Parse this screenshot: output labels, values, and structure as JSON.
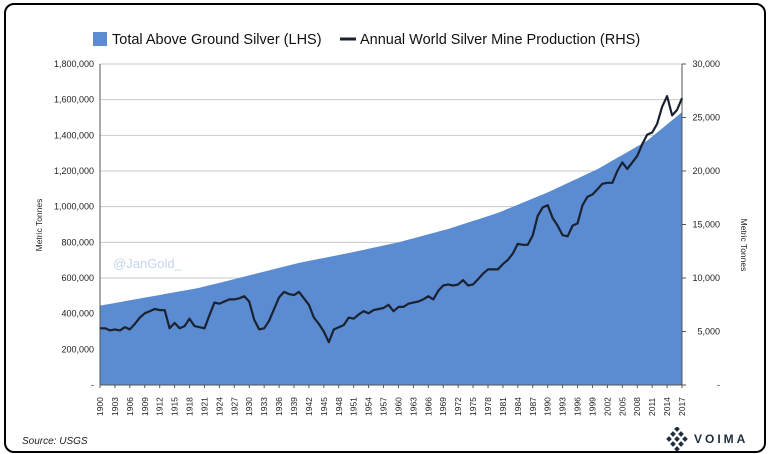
{
  "chart_data": {
    "type": "area+line",
    "legend": {
      "position": "top",
      "area_label": "Total Above Ground Silver (LHS)",
      "line_label": "Annual World Silver Mine Production (RHS)"
    },
    "left_axis": {
      "label": "Metric Tonnes",
      "min": 0,
      "max": 1800000,
      "ticks": [
        "-",
        "200,000",
        "400,000",
        "600,000",
        "800,000",
        "1,000,000",
        "1,200,000",
        "1,400,000",
        "1,600,000",
        "1,800,000"
      ]
    },
    "right_axis": {
      "label": "Metric Tonnes",
      "min": 0,
      "max": 30000,
      "ticks": [
        "-",
        "5,000",
        "10,000",
        "15,000",
        "20,000",
        "25,000",
        "30,000"
      ]
    },
    "x_axis": {
      "min": 1900,
      "max": 2017,
      "ticks": [
        "1900",
        "1903",
        "1906",
        "1909",
        "1912",
        "1915",
        "1918",
        "1921",
        "1924",
        "1927",
        "1930",
        "1933",
        "1936",
        "1939",
        "1942",
        "1945",
        "1948",
        "1951",
        "1954",
        "1957",
        "1960",
        "1963",
        "1966",
        "1969",
        "1972",
        "1975",
        "1978",
        "1981",
        "1984",
        "1987",
        "1990",
        "1993",
        "1996",
        "1999",
        "2002",
        "2005",
        "2008",
        "2011",
        "2014",
        "2017"
      ]
    },
    "series": [
      {
        "name": "Total Above Ground Silver (LHS)",
        "type": "area",
        "axis": "left",
        "color": "#5b8bd0",
        "points": [
          [
            1900,
            445000
          ],
          [
            1910,
            495000
          ],
          [
            1920,
            545000
          ],
          [
            1930,
            615000
          ],
          [
            1940,
            685000
          ],
          [
            1950,
            740000
          ],
          [
            1960,
            800000
          ],
          [
            1970,
            875000
          ],
          [
            1980,
            965000
          ],
          [
            1990,
            1080000
          ],
          [
            2000,
            1210000
          ],
          [
            2010,
            1370000
          ],
          [
            2017,
            1530000
          ]
        ]
      },
      {
        "name": "Annual World Silver Mine Production (RHS)",
        "type": "line",
        "axis": "right",
        "color": "#1a2231",
        "points": [
          [
            1900,
            5300
          ],
          [
            1901,
            5300
          ],
          [
            1902,
            5100
          ],
          [
            1903,
            5200
          ],
          [
            1904,
            5100
          ],
          [
            1905,
            5400
          ],
          [
            1906,
            5200
          ],
          [
            1907,
            5700
          ],
          [
            1908,
            6300
          ],
          [
            1909,
            6700
          ],
          [
            1910,
            6900
          ],
          [
            1911,
            7100
          ],
          [
            1912,
            7000
          ],
          [
            1913,
            7000
          ],
          [
            1914,
            5300
          ],
          [
            1915,
            5800
          ],
          [
            1916,
            5300
          ],
          [
            1917,
            5500
          ],
          [
            1918,
            6200
          ],
          [
            1919,
            5500
          ],
          [
            1920,
            5400
          ],
          [
            1921,
            5300
          ],
          [
            1922,
            6500
          ],
          [
            1923,
            7700
          ],
          [
            1924,
            7600
          ],
          [
            1925,
            7800
          ],
          [
            1926,
            8000
          ],
          [
            1927,
            8000
          ],
          [
            1928,
            8100
          ],
          [
            1929,
            8300
          ],
          [
            1930,
            7800
          ],
          [
            1931,
            6100
          ],
          [
            1932,
            5200
          ],
          [
            1933,
            5300
          ],
          [
            1934,
            6000
          ],
          [
            1935,
            7100
          ],
          [
            1936,
            8200
          ],
          [
            1937,
            8700
          ],
          [
            1938,
            8500
          ],
          [
            1939,
            8400
          ],
          [
            1940,
            8700
          ],
          [
            1941,
            8100
          ],
          [
            1942,
            7500
          ],
          [
            1943,
            6300
          ],
          [
            1944,
            5700
          ],
          [
            1945,
            5000
          ],
          [
            1946,
            4000
          ],
          [
            1947,
            5200
          ],
          [
            1948,
            5400
          ],
          [
            1949,
            5600
          ],
          [
            1950,
            6300
          ],
          [
            1951,
            6200
          ],
          [
            1952,
            6600
          ],
          [
            1953,
            6900
          ],
          [
            1954,
            6700
          ],
          [
            1955,
            7000
          ],
          [
            1956,
            7100
          ],
          [
            1957,
            7200
          ],
          [
            1958,
            7500
          ],
          [
            1959,
            6900
          ],
          [
            1960,
            7300
          ],
          [
            1961,
            7300
          ],
          [
            1962,
            7600
          ],
          [
            1963,
            7700
          ],
          [
            1964,
            7800
          ],
          [
            1965,
            8000
          ],
          [
            1966,
            8300
          ],
          [
            1967,
            8000
          ],
          [
            1968,
            8800
          ],
          [
            1969,
            9300
          ],
          [
            1970,
            9400
          ],
          [
            1971,
            9300
          ],
          [
            1972,
            9400
          ],
          [
            1973,
            9800
          ],
          [
            1974,
            9300
          ],
          [
            1975,
            9400
          ],
          [
            1976,
            9900
          ],
          [
            1977,
            10400
          ],
          [
            1978,
            10800
          ],
          [
            1979,
            10800
          ],
          [
            1980,
            10800
          ],
          [
            1981,
            11300
          ],
          [
            1982,
            11700
          ],
          [
            1983,
            12300
          ],
          [
            1984,
            13200
          ],
          [
            1985,
            13100
          ],
          [
            1986,
            13100
          ],
          [
            1987,
            14000
          ],
          [
            1988,
            15800
          ],
          [
            1989,
            16600
          ],
          [
            1990,
            16800
          ],
          [
            1991,
            15600
          ],
          [
            1992,
            14900
          ],
          [
            1993,
            14000
          ],
          [
            1994,
            13900
          ],
          [
            1995,
            14900
          ],
          [
            1996,
            15100
          ],
          [
            1997,
            16800
          ],
          [
            1998,
            17600
          ],
          [
            1999,
            17800
          ],
          [
            2000,
            18300
          ],
          [
            2001,
            18800
          ],
          [
            2002,
            18900
          ],
          [
            2003,
            18900
          ],
          [
            2004,
            20000
          ],
          [
            2005,
            20800
          ],
          [
            2006,
            20200
          ],
          [
            2007,
            20800
          ],
          [
            2008,
            21400
          ],
          [
            2009,
            22500
          ],
          [
            2010,
            23400
          ],
          [
            2011,
            23600
          ],
          [
            2012,
            24400
          ],
          [
            2013,
            26000
          ],
          [
            2014,
            27000
          ],
          [
            2015,
            25200
          ],
          [
            2016,
            25700
          ],
          [
            2017,
            26800
          ]
        ]
      }
    ],
    "annotations": [
      "@JanGold_"
    ]
  },
  "footer": {
    "source": "Source: USGS",
    "brand": "VOIMA"
  }
}
